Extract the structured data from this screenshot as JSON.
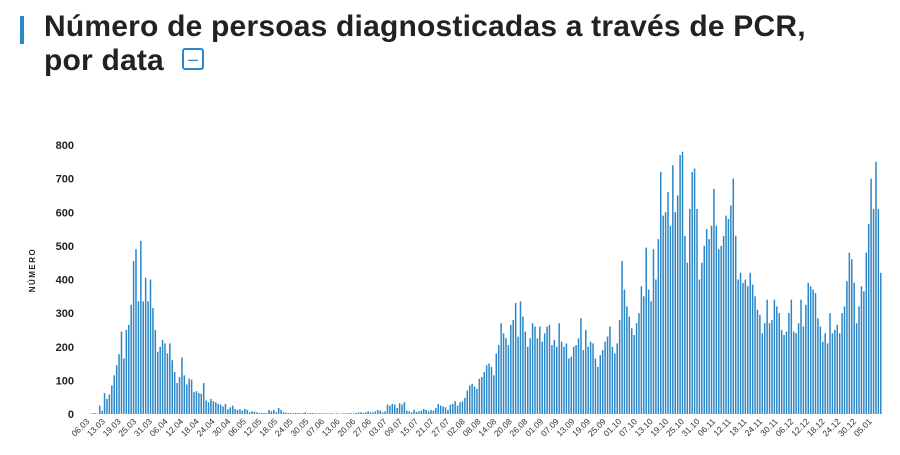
{
  "header": {
    "title_line1": "Número de persoas diagnosticadas a través de PCR,",
    "title_line2": "por data",
    "collapse_button": "–"
  },
  "colors": {
    "accent": "#2b87c8",
    "bar": "#2b87c8"
  },
  "chart_data": {
    "type": "bar",
    "title": "Número de persoas diagnosticadas a través de PCR, por data",
    "xlabel": "",
    "ylabel": "NÚMERO",
    "ylim": [
      0,
      800
    ],
    "yticks": [
      0,
      100,
      200,
      300,
      400,
      500,
      600,
      700,
      800
    ],
    "grid": false,
    "legend": "none",
    "x_tick_labels": [
      "06.03",
      "13.03",
      "19.03",
      "25.03",
      "31.03",
      "06.04",
      "12.04",
      "18.04",
      "24.04",
      "30.04",
      "06.05",
      "12.05",
      "18.05",
      "24.05",
      "30.05",
      "07.06",
      "13.06",
      "20.06",
      "27.06",
      "03.07",
      "09.07",
      "15.07",
      "21.07",
      "27.07",
      "02.08",
      "08.08",
      "14.08",
      "20.08",
      "26.08",
      "01.09",
      "07.09",
      "13.09",
      "19.09",
      "25.09",
      "01.10",
      "07.10",
      "13.10",
      "19.10",
      "25.10",
      "31.10",
      "06.11",
      "12.11",
      "18.11",
      "24.11",
      "30.11",
      "06.12",
      "12.12",
      "18.12",
      "24.12",
      "30.12",
      "05.01"
    ],
    "values": [
      0,
      0,
      1,
      2,
      3,
      1,
      25,
      10,
      62,
      45,
      58,
      85,
      115,
      145,
      178,
      245,
      165,
      250,
      265,
      325,
      455,
      490,
      335,
      515,
      335,
      405,
      335,
      400,
      315,
      250,
      185,
      200,
      220,
      210,
      180,
      210,
      160,
      125,
      92,
      110,
      168,
      115,
      88,
      105,
      102,
      65,
      68,
      62,
      60,
      92,
      40,
      35,
      45,
      38,
      35,
      30,
      28,
      22,
      30,
      14,
      20,
      25,
      15,
      12,
      14,
      10,
      15,
      12,
      5,
      8,
      7,
      5,
      3,
      3,
      3,
      3,
      12,
      8,
      12,
      5,
      18,
      12,
      5,
      4,
      3,
      3,
      2,
      3,
      3,
      2,
      3,
      5,
      2,
      3,
      3,
      2,
      2,
      2,
      2,
      2,
      2,
      2,
      2,
      1,
      2,
      1,
      1,
      2,
      2,
      3,
      2,
      2,
      3,
      5,
      5,
      3,
      5,
      8,
      5,
      5,
      8,
      12,
      10,
      5,
      8,
      28,
      25,
      30,
      28,
      18,
      32,
      28,
      35,
      10,
      8,
      5,
      12,
      6,
      8,
      10,
      15,
      12,
      8,
      12,
      10,
      18,
      30,
      25,
      22,
      20,
      12,
      28,
      30,
      38,
      25,
      35,
      38,
      48,
      70,
      85,
      90,
      82,
      75,
      105,
      110,
      125,
      145,
      150,
      140,
      115,
      180,
      205,
      270,
      240,
      225,
      205,
      265,
      280,
      330,
      230,
      335,
      290,
      245,
      200,
      225,
      270,
      260,
      225,
      260,
      215,
      240,
      260,
      265,
      205,
      220,
      200,
      270,
      215,
      200,
      210,
      165,
      170,
      200,
      205,
      225,
      285,
      190,
      250,
      200,
      215,
      210,
      165,
      140,
      175,
      190,
      215,
      230,
      260,
      200,
      180,
      210,
      280,
      455,
      370,
      320,
      290,
      255,
      235,
      270,
      300,
      380,
      350,
      495,
      370,
      335,
      490,
      400,
      520,
      720,
      590,
      600,
      660,
      560,
      740,
      600,
      650,
      770,
      780,
      530,
      450,
      610,
      720,
      730,
      610,
      400,
      450,
      500,
      550,
      520,
      560,
      670,
      560,
      490,
      500,
      530,
      590,
      580,
      620,
      700,
      530,
      400,
      420,
      390,
      400,
      380,
      420,
      385,
      350,
      310,
      295,
      240,
      270,
      340,
      270,
      280,
      340,
      320,
      300,
      250,
      235,
      245,
      300,
      340,
      245,
      240,
      270,
      340,
      260,
      325,
      390,
      380,
      370,
      360,
      285,
      260,
      215,
      240,
      210,
      300,
      240,
      250,
      265,
      240,
      300,
      320,
      395,
      480,
      460,
      390,
      270,
      320,
      380,
      365,
      480,
      565,
      700,
      610,
      750,
      610,
      420
    ]
  }
}
